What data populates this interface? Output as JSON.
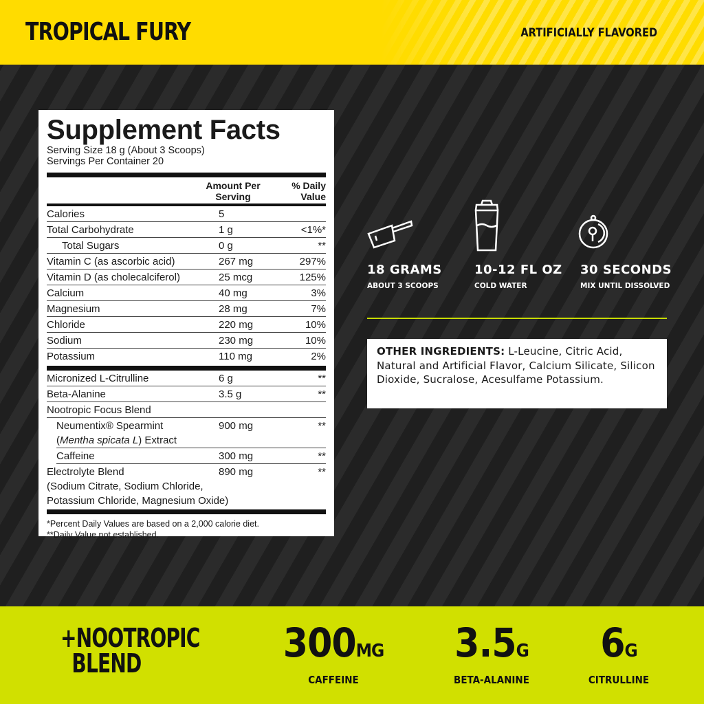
{
  "header": {
    "flavor": "TROPICAL FURY",
    "note": "ARTIFICIALLY FLAVORED",
    "color": "#ffdc00"
  },
  "facts": {
    "title": "Supplement Facts",
    "serving_size": "Serving Size 18 g (About 3 Scoops)",
    "servings": "Servings Per Container 20",
    "col_amount_1": "Amount Per",
    "col_amount_2": "Serving",
    "col_dv_1": "% Daily",
    "col_dv_2": "Value",
    "nutrients": [
      {
        "name": "Calories",
        "amount": "5",
        "dv": ""
      },
      {
        "name": "Total Carbohydrate",
        "amount": "1 g",
        "dv": "<1%*"
      },
      {
        "name": "Total Sugars",
        "amount": "0 g",
        "dv": "**",
        "indent": true
      },
      {
        "name": "Vitamin C (as ascorbic acid)",
        "amount": "267 mg",
        "dv": "297%"
      },
      {
        "name": "Vitamin D (as cholecalciferol)",
        "amount": "25 mcg",
        "dv": "125%"
      },
      {
        "name": "Calcium",
        "amount": "40 mg",
        "dv": "3%"
      },
      {
        "name": "Magnesium",
        "amount": "28 mg",
        "dv": "7%"
      },
      {
        "name": "Chloride",
        "amount": "220 mg",
        "dv": "10%"
      },
      {
        "name": "Sodium",
        "amount": "230 mg",
        "dv": "10%"
      },
      {
        "name": "Potassium",
        "amount": "110 mg",
        "dv": "2%"
      }
    ],
    "citrulline": {
      "name": "Micronized L-Citrulline",
      "amount": "6 g",
      "dv": "**"
    },
    "beta": {
      "name": "Beta-Alanine",
      "amount": "3.5 g",
      "dv": "**"
    },
    "blend": {
      "name": "Nootropic Focus Blend"
    },
    "neumentix": {
      "name": "Neumentix® Spearmint",
      "pre": "(",
      "italic": "Mentha spicata L",
      "post": ") Extract",
      "amount": "900 mg",
      "dv": "**"
    },
    "caffeine": {
      "name": "Caffeine",
      "amount": "300 mg",
      "dv": "**"
    },
    "electrolyte": {
      "name": "Electrolyte Blend",
      "line2": "(Sodium Citrate, Sodium Chloride,",
      "line3": "Potassium Chloride, Magnesium Oxide)",
      "amount": "890 mg",
      "dv": "**"
    },
    "footnote1": "*Percent Daily Values are based on a 2,000 calorie diet.",
    "footnote2": "**Daily Value not established."
  },
  "directions": [
    {
      "icon": "scoop-icon",
      "title": "18 GRAMS",
      "sub": "ABOUT 3 SCOOPS"
    },
    {
      "icon": "shaker-icon",
      "title": "10-12 FL OZ",
      "sub": "COLD WATER"
    },
    {
      "icon": "stopwatch-icon",
      "title": "30 SECONDS",
      "sub": "MIX UNTIL DISSOLVED"
    }
  ],
  "other": {
    "label": "OTHER INGREDIENTS:",
    "text": " L-Leucine, Citric Acid, Natural and Artificial Flavor, Calcium Silicate, Silicon Dioxide, Sucralose, Acesulfame Potassium."
  },
  "bottom": {
    "color": "#d1e000",
    "blend_1": "+NOOTROPIC",
    "blend_2": "BLEND",
    "stats": [
      {
        "value": "300",
        "unit": "MG",
        "label": "CAFFEINE"
      },
      {
        "value": "3.5",
        "unit": "G",
        "label": "BETA-ALANINE"
      },
      {
        "value": "6",
        "unit": "G",
        "label": "CITRULLINE"
      }
    ]
  }
}
